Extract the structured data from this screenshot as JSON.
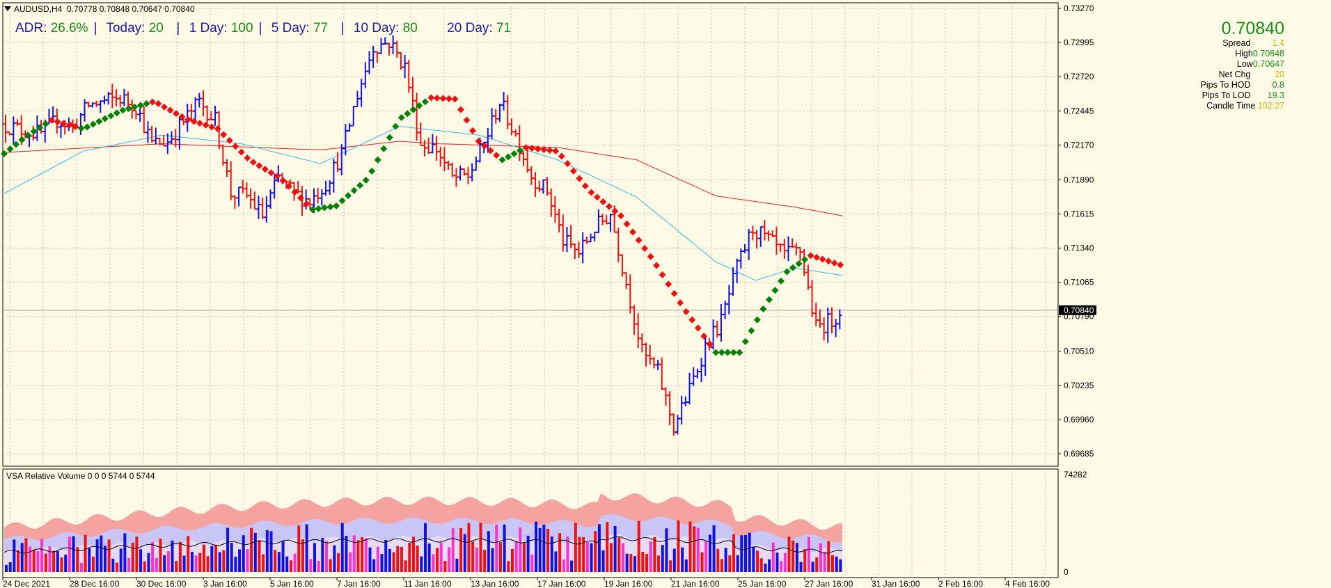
{
  "header": {
    "symbol": "AUDUSD,H4",
    "ohlc": "0.70778 0.70848 0.70647 0.70840"
  },
  "adr": {
    "label": "ADR:",
    "adr_value": "26.6%",
    "today_label": "Today:",
    "today_value": "20",
    "d1_label": "1 Day:",
    "d1_value": "100",
    "d5_label": "5 Day:",
    "d5_value": "77",
    "d10_label": "10 Day:",
    "d10_value": "80",
    "d20_label": "20 Day:",
    "d20_value": "71"
  },
  "panel": {
    "price": "0.70840",
    "spread_label": "Spread",
    "spread_value": "1.4",
    "high_label": "High",
    "high_value": "0.70848",
    "low_label": "Low",
    "low_value": "0.70647",
    "netchg_label": "Net Chg",
    "netchg_value": "20",
    "hod_label": "Pips To HOD",
    "hod_value": "0.8",
    "lod_label": "Pips To LOD",
    "lod_value": "19.3",
    "ct_label": "Candle Time",
    "ct_value": "102:27"
  },
  "volume_header": "VSA Relative Volume 0 0 0 5744 0 5744",
  "colors": {
    "bg": "#fffae6",
    "up": "#1212e0",
    "down": "#ee1111",
    "ema_up": "#008000",
    "ema_down": "#ee1111",
    "ma_slow": "#e52020",
    "ma_mid": "#37b6e6",
    "vol_band_top": "#f4a3a0",
    "vol_band_mid": "#c9c6f5",
    "vol_band_low": "#e6dbf5",
    "vol_magenta": "#ff33cc"
  },
  "chart_data": {
    "type": "ohlc",
    "symbol": "AUDUSD",
    "timeframe": "H4",
    "price_axis_ticks": [
      "0.73270",
      "0.72995",
      "0.72720",
      "0.72445",
      "0.72170",
      "0.71890",
      "0.71615",
      "0.71340",
      "0.71065",
      "0.70790",
      "0.70510",
      "0.70235",
      "0.69960",
      "0.69685"
    ],
    "current_price": "0.70840",
    "time_axis_ticks": [
      "24 Dec 2021",
      "28 Dec 16:00",
      "30 Dec 16:00",
      "3 Jan 16:00",
      "5 Jan 16:00",
      "7 Jan 16:00",
      "11 Jan 16:00",
      "13 Jan 16:00",
      "17 Jan 16:00",
      "19 Jan 16:00",
      "21 Jan 16:00",
      "25 Jan 16:00",
      "27 Jan 16:00",
      "31 Jan 16:00",
      "2 Feb 16:00",
      "4 Feb 16:00"
    ],
    "volume_axis_ticks": [
      "74282",
      "0"
    ],
    "price_path": [
      {
        "t": 0,
        "p": 0.7234
      },
      {
        "t": 6,
        "p": 0.7228
      },
      {
        "t": 10,
        "p": 0.7226
      },
      {
        "t": 14,
        "p": 0.7237
      },
      {
        "t": 18,
        "p": 0.7232
      },
      {
        "t": 22,
        "p": 0.7249
      },
      {
        "t": 26,
        "p": 0.7252
      },
      {
        "t": 30,
        "p": 0.7255
      },
      {
        "t": 34,
        "p": 0.7248
      },
      {
        "t": 38,
        "p": 0.7218
      },
      {
        "t": 42,
        "p": 0.722
      },
      {
        "t": 46,
        "p": 0.7236
      },
      {
        "t": 50,
        "p": 0.7252
      },
      {
        "t": 54,
        "p": 0.7237
      },
      {
        "t": 58,
        "p": 0.7178
      },
      {
        "t": 62,
        "p": 0.7176
      },
      {
        "t": 66,
        "p": 0.716
      },
      {
        "t": 70,
        "p": 0.719
      },
      {
        "t": 74,
        "p": 0.7178
      },
      {
        "t": 78,
        "p": 0.7172
      },
      {
        "t": 82,
        "p": 0.7186
      },
      {
        "t": 86,
        "p": 0.721
      },
      {
        "t": 90,
        "p": 0.7258
      },
      {
        "t": 94,
        "p": 0.7296
      },
      {
        "t": 98,
        "p": 0.73
      },
      {
        "t": 102,
        "p": 0.728
      },
      {
        "t": 106,
        "p": 0.7218
      },
      {
        "t": 110,
        "p": 0.7214
      },
      {
        "t": 114,
        "p": 0.719
      },
      {
        "t": 118,
        "p": 0.7192
      },
      {
        "t": 122,
        "p": 0.7218
      },
      {
        "t": 126,
        "p": 0.7252
      },
      {
        "t": 130,
        "p": 0.7225
      },
      {
        "t": 134,
        "p": 0.7192
      },
      {
        "t": 138,
        "p": 0.718
      },
      {
        "t": 142,
        "p": 0.714
      },
      {
        "t": 146,
        "p": 0.713
      },
      {
        "t": 150,
        "p": 0.715
      },
      {
        "t": 154,
        "p": 0.7162
      },
      {
        "t": 158,
        "p": 0.7106
      },
      {
        "t": 162,
        "p": 0.705
      },
      {
        "t": 166,
        "p": 0.7034
      },
      {
        "t": 170,
        "p": 0.699
      },
      {
        "t": 174,
        "p": 0.702
      },
      {
        "t": 178,
        "p": 0.7055
      },
      {
        "t": 182,
        "p": 0.7075
      },
      {
        "t": 186,
        "p": 0.7118
      },
      {
        "t": 190,
        "p": 0.715
      },
      {
        "t": 194,
        "p": 0.714
      },
      {
        "t": 198,
        "p": 0.7128
      },
      {
        "t": 202,
        "p": 0.7132
      },
      {
        "t": 206,
        "p": 0.707
      },
      {
        "t": 210,
        "p": 0.7076
      },
      {
        "t": 212,
        "p": 0.7084
      }
    ],
    "ema_points": [
      {
        "t": 0,
        "p": 0.721
      },
      {
        "t": 6,
        "p": 0.7225
      },
      {
        "t": 12,
        "p": 0.7237
      },
      {
        "t": 20,
        "p": 0.723
      },
      {
        "t": 30,
        "p": 0.7245
      },
      {
        "t": 38,
        "p": 0.7252
      },
      {
        "t": 46,
        "p": 0.7238
      },
      {
        "t": 54,
        "p": 0.723
      },
      {
        "t": 62,
        "p": 0.7205
      },
      {
        "t": 70,
        "p": 0.719
      },
      {
        "t": 78,
        "p": 0.7165
      },
      {
        "t": 84,
        "p": 0.7168
      },
      {
        "t": 92,
        "p": 0.719
      },
      {
        "t": 100,
        "p": 0.7238
      },
      {
        "t": 108,
        "p": 0.7255
      },
      {
        "t": 114,
        "p": 0.7254
      },
      {
        "t": 120,
        "p": 0.722
      },
      {
        "t": 126,
        "p": 0.7205
      },
      {
        "t": 132,
        "p": 0.7215
      },
      {
        "t": 140,
        "p": 0.7212
      },
      {
        "t": 148,
        "p": 0.718
      },
      {
        "t": 156,
        "p": 0.716
      },
      {
        "t": 164,
        "p": 0.7125
      },
      {
        "t": 172,
        "p": 0.7085
      },
      {
        "t": 180,
        "p": 0.705
      },
      {
        "t": 186,
        "p": 0.705
      },
      {
        "t": 192,
        "p": 0.7085
      },
      {
        "t": 198,
        "p": 0.7115
      },
      {
        "t": 204,
        "p": 0.7128
      },
      {
        "t": 212,
        "p": 0.712
      }
    ],
    "ma_slow_points": [
      {
        "t": 0,
        "p": 0.7211
      },
      {
        "t": 40,
        "p": 0.7218
      },
      {
        "t": 80,
        "p": 0.7213
      },
      {
        "t": 100,
        "p": 0.722
      },
      {
        "t": 110,
        "p": 0.7218
      },
      {
        "t": 140,
        "p": 0.7215
      },
      {
        "t": 160,
        "p": 0.7205
      },
      {
        "t": 180,
        "p": 0.7176
      },
      {
        "t": 200,
        "p": 0.7167
      },
      {
        "t": 212,
        "p": 0.716
      }
    ],
    "ma_mid_points": [
      {
        "t": 0,
        "p": 0.7178
      },
      {
        "t": 20,
        "p": 0.7212
      },
      {
        "t": 40,
        "p": 0.7225
      },
      {
        "t": 60,
        "p": 0.7218
      },
      {
        "t": 80,
        "p": 0.7202
      },
      {
        "t": 100,
        "p": 0.7232
      },
      {
        "t": 120,
        "p": 0.7225
      },
      {
        "t": 140,
        "p": 0.7205
      },
      {
        "t": 160,
        "p": 0.7175
      },
      {
        "t": 180,
        "p": 0.7123
      },
      {
        "t": 190,
        "p": 0.7108
      },
      {
        "t": 200,
        "p": 0.7118
      },
      {
        "t": 212,
        "p": 0.7112
      }
    ],
    "volume_max": 74282
  }
}
